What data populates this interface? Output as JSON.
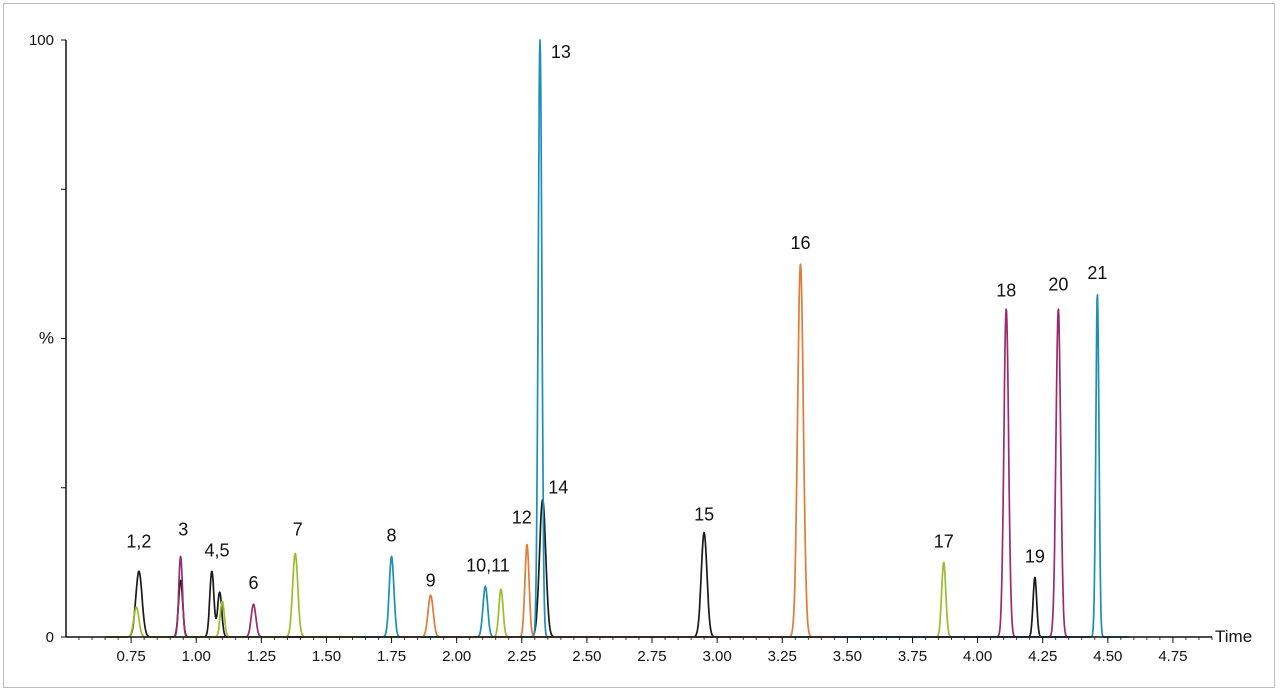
{
  "chart_data": {
    "type": "line",
    "title": "",
    "xlabel": "Time",
    "ylabel": "%",
    "xlim": [
      0.5,
      4.9
    ],
    "ylim": [
      0,
      100
    ],
    "xticks": [
      "0.75",
      "1.00",
      "1.25",
      "1.50",
      "1.75",
      "2.00",
      "2.25",
      "2.50",
      "2.75",
      "3.00",
      "3.25",
      "3.50",
      "3.75",
      "4.00",
      "4.25",
      "4.50",
      "4.75"
    ],
    "yticks": [
      "0",
      "%",
      "100"
    ],
    "grid": false,
    "colors": {
      "black": "#1a1a1a",
      "magenta": "#9c2b6b",
      "green": "#9bbd2d",
      "blue": "#1b8fb4",
      "orange": "#e07b39"
    },
    "series": [
      {
        "color": "black",
        "peaks": [
          {
            "x": 0.78,
            "y": 11,
            "w": 0.012
          },
          {
            "x": 0.94,
            "y": 9.5,
            "w": 0.008
          },
          {
            "x": 1.06,
            "y": 11,
            "w": 0.008
          },
          {
            "x": 1.09,
            "y": 7.5,
            "w": 0.008
          },
          {
            "x": 2.33,
            "y": 23,
            "w": 0.012
          },
          {
            "x": 2.95,
            "y": 17.5,
            "w": 0.011
          },
          {
            "x": 4.22,
            "y": 10,
            "w": 0.007
          }
        ]
      },
      {
        "color": "magenta",
        "peaks": [
          {
            "x": 0.94,
            "y": 13.5,
            "w": 0.007
          },
          {
            "x": 1.22,
            "y": 5.5,
            "w": 0.009
          },
          {
            "x": 4.11,
            "y": 55,
            "w": 0.009
          },
          {
            "x": 4.31,
            "y": 55,
            "w": 0.009
          }
        ]
      },
      {
        "color": "green",
        "peaks": [
          {
            "x": 0.77,
            "y": 5,
            "w": 0.01
          },
          {
            "x": 1.1,
            "y": 6,
            "w": 0.008
          },
          {
            "x": 1.38,
            "y": 14,
            "w": 0.01
          },
          {
            "x": 2.17,
            "y": 8,
            "w": 0.008
          },
          {
            "x": 3.87,
            "y": 12.5,
            "w": 0.008
          }
        ]
      },
      {
        "color": "blue",
        "peaks": [
          {
            "x": 1.75,
            "y": 13.5,
            "w": 0.009
          },
          {
            "x": 2.11,
            "y": 8.5,
            "w": 0.009
          },
          {
            "x": 2.32,
            "y": 100,
            "w": 0.007
          },
          {
            "x": 4.46,
            "y": 57.5,
            "w": 0.006
          }
        ]
      },
      {
        "color": "orange",
        "peaks": [
          {
            "x": 1.9,
            "y": 7,
            "w": 0.01
          },
          {
            "x": 2.27,
            "y": 15.5,
            "w": 0.008
          },
          {
            "x": 3.32,
            "y": 62.5,
            "w": 0.011
          }
        ]
      }
    ],
    "annotations": [
      {
        "text": "1,2",
        "x": 0.78,
        "y": 15
      },
      {
        "text": "3",
        "x": 0.95,
        "y": 17
      },
      {
        "text": "4,5",
        "x": 1.08,
        "y": 13.5
      },
      {
        "text": "6",
        "x": 1.22,
        "y": 8
      },
      {
        "text": "7",
        "x": 1.39,
        "y": 17
      },
      {
        "text": "8",
        "x": 1.75,
        "y": 16
      },
      {
        "text": "9",
        "x": 1.9,
        "y": 8.5
      },
      {
        "text": "10,11",
        "x": 2.12,
        "y": 11
      },
      {
        "text": "12",
        "x": 2.25,
        "y": 19
      },
      {
        "text": "13",
        "x": 2.4,
        "y": 97
      },
      {
        "text": "14",
        "x": 2.39,
        "y": 24
      },
      {
        "text": "15",
        "x": 2.95,
        "y": 19.5
      },
      {
        "text": "16",
        "x": 3.32,
        "y": 65
      },
      {
        "text": "17",
        "x": 3.87,
        "y": 15
      },
      {
        "text": "18",
        "x": 4.11,
        "y": 57
      },
      {
        "text": "19",
        "x": 4.22,
        "y": 12.5
      },
      {
        "text": "20",
        "x": 4.31,
        "y": 58
      },
      {
        "text": "21",
        "x": 4.46,
        "y": 60
      }
    ]
  }
}
